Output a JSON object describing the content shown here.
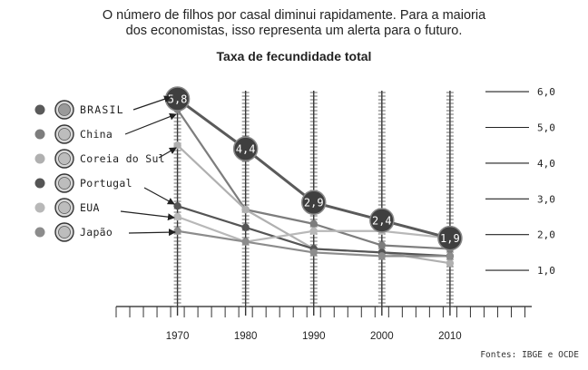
{
  "headline": {
    "line1": "O número de filhos por casal diminui rapidamente. Para a maioria",
    "line2": "dos economistas, isso representa um alerta para o futuro."
  },
  "source": "Fontes: IBGE e OCDE",
  "colors": {
    "Brasil": "#5a5a5a",
    "China": "#7d7d7d",
    "Coreia do Sul": "#b0b0b0",
    "Portugal": "#555555",
    "EUA": "#b8b8b8",
    "Japão": "#8c8c8c"
  },
  "chart_data": {
    "type": "line",
    "title": "Taxa de fecundidade total",
    "x": [
      1970,
      1980,
      1990,
      2000,
      2010
    ],
    "x_tick_labels": [
      "1970",
      "1980",
      "1990",
      "2000",
      "2010"
    ],
    "y_tick_labels": [
      "1,0",
      "2,0",
      "3,0",
      "4,0",
      "5,0",
      "6,0"
    ],
    "y_ticks": [
      1,
      2,
      3,
      4,
      5,
      6
    ],
    "xlim": [
      1961,
      2022
    ],
    "ylim": [
      0,
      6
    ],
    "series": [
      {
        "name": "Brasil",
        "label": "BRASIL",
        "values": [
          5.8,
          4.4,
          2.9,
          2.4,
          1.9
        ],
        "labels": [
          "5,8",
          "4,4",
          "2,9",
          "2,4",
          "1,9"
        ],
        "color": "#5a5a5a",
        "emphasis": true
      },
      {
        "name": "China",
        "label": "China",
        "values": [
          5.5,
          2.7,
          2.3,
          1.7,
          1.6
        ],
        "color": "#7d7d7d"
      },
      {
        "name": "Coreia do Sul",
        "label": "Coreia do Sul",
        "values": [
          4.5,
          2.7,
          1.6,
          1.5,
          1.2
        ],
        "color": "#b0b0b0"
      },
      {
        "name": "Portugal",
        "label": "Portugal",
        "values": [
          2.8,
          2.2,
          1.6,
          1.5,
          1.4
        ],
        "color": "#555555"
      },
      {
        "name": "EUA",
        "label": "EUA",
        "values": [
          2.5,
          1.8,
          2.1,
          2.1,
          1.9
        ],
        "color": "#b8b8b8"
      },
      {
        "name": "Japão",
        "label": "Japão",
        "values": [
          2.1,
          1.8,
          1.5,
          1.4,
          1.4
        ],
        "color": "#8c8c8c"
      }
    ]
  }
}
